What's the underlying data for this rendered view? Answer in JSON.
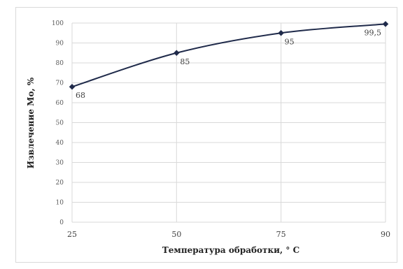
{
  "chart_data": {
    "type": "line",
    "title": "",
    "xlabel": "Температура обработки, ° С",
    "ylabel": "Извлечение Мо, %",
    "categories": [
      "25",
      "50",
      "75",
      "90"
    ],
    "series": [
      {
        "values": [
          68,
          85,
          95,
          99.5
        ],
        "labels": [
          "68",
          "85",
          "95",
          "99,5"
        ]
      }
    ],
    "ylim": [
      0,
      100
    ],
    "yticks": [
      "0",
      "10",
      "20",
      "30",
      "40",
      "50",
      "60",
      "70",
      "80",
      "90",
      "100"
    ],
    "grid": true,
    "colors": {
      "line": "#1f2a4a",
      "grid": "#d9d9d9"
    }
  }
}
